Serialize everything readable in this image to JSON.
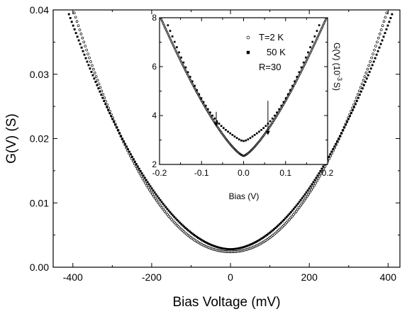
{
  "chart_data": [
    {
      "type": "scatter",
      "panel": "main",
      "xlabel": "Bias Voltage (mV)",
      "ylabel": "G(V) (S)",
      "xlim": [
        -450,
        430
      ],
      "ylim": [
        0,
        0.04
      ],
      "xticks": [
        -400,
        -200,
        0,
        200,
        400
      ],
      "xtick_labels": [
        "-400",
        "-200",
        "0",
        "200",
        "400"
      ],
      "yticks": [
        0,
        0.01,
        0.02,
        0.03,
        0.04
      ],
      "ytick_labels": [
        "0.00",
        "0.01",
        "0.02",
        "0.03",
        "0.04"
      ],
      "grid": false,
      "series": [
        {
          "marker": "open-circle",
          "model": {
            "vmin": 0.0024,
            "a": 0.0378,
            "xm": 400,
            "p": 2.05,
            "xmin": -400,
            "xmax": 400
          }
        },
        {
          "marker": "filled-square",
          "model": {
            "vmin": 0.0028,
            "a": 0.0367,
            "xm": 411,
            "p": 1.88,
            "xmin": -410,
            "xmax": 410
          }
        }
      ]
    },
    {
      "type": "scatter",
      "panel": "inset",
      "xlabel": "Bias (V)",
      "ylabel": "G(V) (10⁻³ S)",
      "ylabel_main": "G(V) (10",
      "ylabel_sup": "-3",
      "ylabel_tail": "S)",
      "xlim": [
        -0.2,
        0.2
      ],
      "ylim": [
        2,
        8
      ],
      "xticks": [
        -0.2,
        -0.1,
        0.0,
        0.1,
        0.2
      ],
      "xtick_labels": [
        "-0.2",
        "-0.1",
        "0.0",
        "0.1",
        "0.2"
      ],
      "yticks": [
        2,
        4,
        6,
        8
      ],
      "ytick_labels": [
        "2",
        "4",
        "6",
        "8"
      ],
      "grid": false,
      "legend": {
        "placement": "top-right",
        "entries": [
          {
            "marker": "open-circle",
            "label": "T=2  K"
          },
          {
            "marker": "filled-square",
            "label": "50 K"
          }
        ],
        "note": "R=30"
      },
      "arrows": [
        {
          "x": -0.065,
          "y_from": 4.15,
          "y_to": 3.55
        },
        {
          "x": 0.058,
          "y_from": 4.6,
          "y_to": 3.2
        }
      ],
      "series": [
        {
          "marker": "open-circle",
          "name": "T=2  K",
          "model": {
            "type": "v",
            "vmin": 2.35,
            "a": 5.75,
            "xm": 0.2,
            "p": 1.35
          }
        },
        {
          "marker": "filled-square",
          "name": "50 K",
          "model": {
            "type": "bump",
            "vmin": 2.75,
            "a": 5.85,
            "xm": 0.2,
            "p": 1.6,
            "bump_h": 0.32,
            "bump_w": 0.055,
            "xmin": -0.18,
            "xmax": 0.18
          }
        }
      ]
    }
  ]
}
